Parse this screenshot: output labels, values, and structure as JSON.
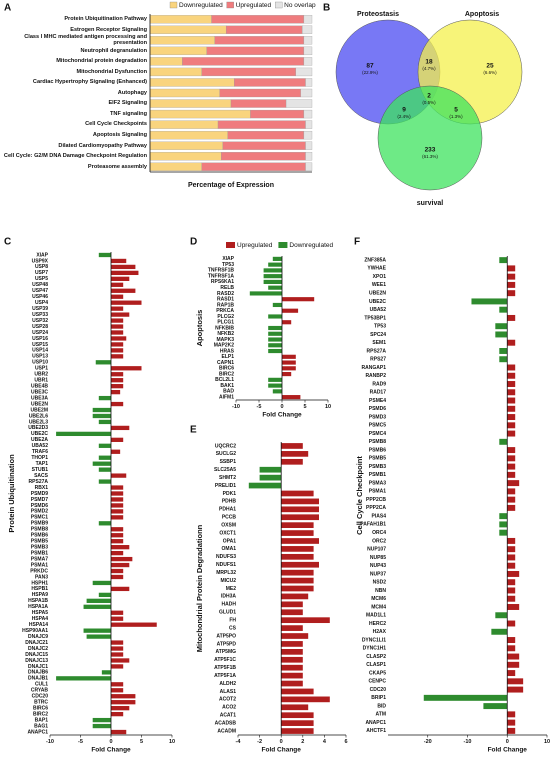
{
  "chart_data": [
    {
      "type": "bar",
      "panel": "A",
      "orientation": "horizontal",
      "stacked": true,
      "legend": "top",
      "xlabel": "Percentage  of Expression",
      "xlim": [
        0,
        100
      ],
      "categories": [
        "Protein Ubiquitination Pathway",
        "Estrogen Receptor Signaling",
        "Class I MHC mediated antigen processing and presentation",
        "Neutrophil degranulation",
        "Mitochondrial protein degradation",
        "Mitochondrial Dysfunction",
        "Cardiac Hypertrophy Signaling (Enhanced)",
        "Autophagy",
        "EIF2 Signaling",
        "TNF signaling",
        "Cell Cycle Checkpoints",
        "Apoptosis Signaling",
        "Dilated Cardiomyopathy  Pathway",
        "Cell Cycle: G2/M DNA Damage Checkpoint Regulation",
        "Proteasome assembly"
      ],
      "series": [
        {
          "name": "Downregulated",
          "color": "#f9d47e",
          "values": [
            38,
            47,
            40,
            35,
            20,
            32,
            52,
            43,
            50,
            62,
            42,
            48,
            45,
            44,
            32
          ]
        },
        {
          "name": "Upregulated",
          "color": "#ef7c7e",
          "values": [
            57,
            47,
            55,
            60,
            75,
            58,
            44,
            50,
            34,
            33,
            54,
            47,
            51,
            52,
            64
          ]
        },
        {
          "name": "No overlap",
          "color": "#e4e4e4",
          "values": [
            5,
            6,
            5,
            5,
            5,
            10,
            4,
            7,
            16,
            5,
            4,
            5,
            4,
            4,
            4
          ]
        }
      ]
    },
    {
      "type": "venn",
      "panel": "B",
      "sets": [
        {
          "name": "Proteostasis",
          "color": "#4b4bf2",
          "label_color": "#3a3ad8"
        },
        {
          "name": "Apoptosis",
          "color": "#f4f04c",
          "label_color": "#8c8a1c"
        },
        {
          "name": "survival",
          "color": "#3ee35e",
          "label_color": "#2a9a2a"
        }
      ],
      "regions": [
        {
          "value": 87,
          "label": "(22.9%)"
        },
        {
          "value": 18,
          "label": "(4.7%)"
        },
        {
          "value": 25,
          "label": "(6.6%)"
        },
        {
          "value": 2,
          "label": "(0.5%)"
        },
        {
          "value": 9,
          "label": "(2.4%)"
        },
        {
          "value": 5,
          "label": "(1.3%)"
        },
        {
          "value": 233,
          "label": "(61.3%)"
        }
      ]
    },
    {
      "type": "bar",
      "panel": "C",
      "orientation": "horizontal",
      "ylabel": "Protein Ubiquitination",
      "xlabel": "Fold Change",
      "xlim": [
        -10,
        10
      ],
      "xticks": [
        -10,
        -5,
        0,
        5,
        10
      ],
      "colors": {
        "positive": "#b01e1e",
        "negative": "#2e8b2e"
      },
      "categories": [
        "XIAP",
        "USP9X",
        "USP8",
        "USP7",
        "USP5",
        "USP48",
        "USP47",
        "USP46",
        "USP4",
        "USP39",
        "USP33",
        "USP32",
        "USP28",
        "USP24",
        "USP16",
        "USP15",
        "USP14",
        "USP13",
        "USP10",
        "USP1",
        "UBR2",
        "UBR1",
        "UBE4B",
        "UBE3C",
        "UBE3A",
        "UBE2N",
        "UBE2M",
        "UBE2L6",
        "UBE2L3",
        "UBE2D3",
        "UBE2C",
        "UBE2A",
        "UBA52",
        "TRAF6",
        "THOP1",
        "TAP1",
        "STUB1",
        "SACS",
        "RPS27A",
        "RBX1",
        "PSMD9",
        "PSMD7",
        "PSMD6",
        "PSMD2",
        "PSMC1",
        "PSMB9",
        "PSMB8",
        "PSMB6",
        "PSMB5",
        "PSMB3",
        "PSMB1",
        "PSMA7",
        "PSMA1",
        "PRKDC",
        "PAN3",
        "HSPH1",
        "HSPB1",
        "HSPA9",
        "HSPA1B",
        "HSPA1A",
        "HSPA5",
        "HSPA4",
        "HSPA14",
        "HSP90AA1",
        "DNAJC9",
        "DNAJC21",
        "DNAJC2",
        "DNAJC15",
        "DNAJC13",
        "DNAJC1",
        "DNAJB6",
        "DNAJB1",
        "CUL1",
        "CRYAB",
        "CDC20",
        "BTRC",
        "BIRC6",
        "BIRC2",
        "BAP1",
        "BAG1",
        "ANAPC1"
      ],
      "values": [
        -2,
        2.5,
        4,
        4.5,
        3,
        2,
        4,
        2,
        5,
        2,
        3,
        2,
        2,
        2,
        2.5,
        2,
        2,
        2,
        -2.5,
        5,
        2,
        2,
        2,
        1.5,
        -2,
        2,
        -3,
        -3,
        -2,
        3,
        -9,
        2,
        -2,
        1.5,
        -2,
        -3,
        -2,
        2.5,
        -2,
        2,
        2,
        2,
        2,
        2,
        2,
        -2,
        2,
        2,
        2,
        3,
        2,
        3.5,
        3,
        2,
        2,
        -3,
        3,
        -2,
        -4,
        -4.5,
        2,
        2,
        7.5,
        -4.5,
        -4,
        2,
        2,
        2,
        3,
        2,
        -1.5,
        -9,
        2,
        2,
        4,
        4,
        3,
        2,
        -3,
        -3,
        2.5
      ]
    },
    {
      "type": "bar",
      "panel": "D",
      "orientation": "horizontal",
      "ylabel": "Apoptosis",
      "xlabel": "Fold Change",
      "xlim": [
        -10,
        10
      ],
      "xticks": [
        -10,
        -5,
        0,
        5,
        10
      ],
      "colors": {
        "positive": "#b01e1e",
        "negative": "#2e8b2e"
      },
      "legend_items": [
        {
          "name": "Upregulated",
          "color": "#b01e1e"
        },
        {
          "name": "Downregulated",
          "color": "#2e8b2e"
        }
      ],
      "categories": [
        "XIAP",
        "TP53",
        "TNFRSF1B",
        "TNFRSF1A",
        "RPS6KA1",
        "RELB",
        "RASD2",
        "RASD1",
        "RAP1B",
        "PRKCA",
        "PLCG2",
        "PLCG1",
        "NFKBIB",
        "NFKB2",
        "MAPK3",
        "MAP2K2",
        "HRAS",
        "ELP1",
        "CAPN1",
        "BIRC6",
        "BIRC2",
        "BCL2L1",
        "BAK1",
        "BAD",
        "AIFM1"
      ],
      "values": [
        -2,
        -3,
        -4,
        -4,
        -4,
        -3,
        -7,
        7,
        -2,
        3.5,
        -3,
        2,
        -3,
        -3,
        -3,
        -3,
        -3,
        3,
        3,
        3,
        2,
        -3,
        -3,
        -2,
        4
      ]
    },
    {
      "type": "bar",
      "panel": "E",
      "orientation": "horizontal",
      "ylabel": "Mitochondrial Protein Degradationn",
      "xlabel": "Fold Change",
      "xlim": [
        -4,
        6
      ],
      "xticks": [
        -4,
        -2,
        0,
        2,
        4,
        6
      ],
      "colors": {
        "positive": "#b01e1e",
        "negative": "#2e8b2e"
      },
      "categories": [
        "UQCRC2",
        "SUCLG2",
        "SSBP1",
        "SLC25A5",
        "SHMT2",
        "PRELID1",
        "PDK1",
        "PDHB",
        "PDHA1",
        "PCCB",
        "OXSM",
        "OXCT1",
        "OPA1",
        "OMA1",
        "NDUFS3",
        "NDUFS1",
        "MRPL32",
        "MICU2",
        "ME2",
        "IDH3A",
        "HADH",
        "GLUD1",
        "FH",
        "CS",
        "ATP5PO",
        "ATP5PD",
        "ATP5MG",
        "ATP5F1C",
        "ATP5F1B",
        "ATP5F1A",
        "ALDH2",
        "ALAS1",
        "ACOT2",
        "ACO2",
        "ACAT1",
        "ACADSB",
        "ACADM"
      ],
      "values": [
        2,
        2.5,
        2,
        -2,
        -2,
        -3,
        3,
        3.5,
        3.5,
        3.5,
        3,
        3,
        3.5,
        3,
        3,
        3.5,
        3,
        3,
        3,
        2.5,
        2,
        2,
        4.5,
        2,
        2.5,
        2,
        2,
        2,
        2,
        2,
        2,
        3,
        4.5,
        2.5,
        3,
        3,
        3
      ]
    },
    {
      "type": "bar",
      "panel": "F",
      "orientation": "horizontal",
      "ylabel": "Cell Cycle Checkpoint",
      "xlabel": "Fold Change",
      "xlim": [
        -30,
        10
      ],
      "xticks": [
        -20,
        -10,
        0,
        10
      ],
      "colors": {
        "positive": "#b01e1e",
        "negative": "#2e8b2e"
      },
      "categories": [
        "ZNF385A",
        "YWHAE",
        "XPO1",
        "WEE1",
        "UBE2N",
        "UBE2C",
        "UBA52",
        "TP53BP1",
        "TP53",
        "SPC24",
        "SEM1",
        "RPS27A",
        "RPS27",
        "RANGAP1",
        "RANBP2",
        "RAD9",
        "RAD17",
        "PSME4",
        "PSMD6",
        "PSMD3",
        "PSMC5",
        "PSMC4",
        "PSMB8",
        "PSMB6",
        "PSMB5",
        "PSMB3",
        "PSMB1",
        "PSMA3",
        "PSMA1",
        "PPP2CB",
        "PPP2CA",
        "PIAS4",
        "PAFAH1B1",
        "ORC4",
        "ORC2",
        "NUP107",
        "NUP85",
        "NUP43",
        "NUP37",
        "NSD2",
        "NBN",
        "MCM6",
        "MCM4",
        "MAD1L1",
        "HERC2",
        "H2AX",
        "DYNC1LI1",
        "DYNC1H1",
        "CLASP2",
        "CLASP1",
        "CKAP5",
        "CENPC",
        "CDC20",
        "BRIP1",
        "BID",
        "ATM",
        "ANAPC1",
        "AHCTF1"
      ],
      "values": [
        -2,
        2,
        2,
        2,
        2,
        -9,
        -2,
        2,
        -3,
        -3,
        2,
        -2,
        -2,
        2,
        2,
        2,
        2,
        2,
        2,
        2,
        2,
        2,
        -2,
        2,
        2,
        2,
        2,
        3,
        2,
        2,
        2,
        -2,
        -2,
        -2,
        2,
        2,
        2,
        2,
        3,
        2,
        2,
        2,
        3,
        -3,
        2,
        -4,
        2,
        2,
        3,
        3,
        2,
        4,
        4,
        -21,
        -6,
        2,
        2,
        2
      ]
    }
  ]
}
